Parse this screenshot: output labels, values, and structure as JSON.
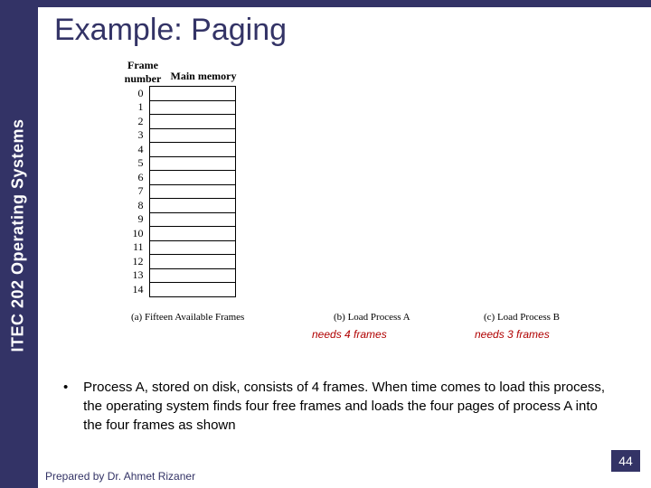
{
  "sidebar": {
    "label": "ITEC 202 Operating Systems"
  },
  "title": "Example: Paging",
  "figure": {
    "frame_header": "Frame\nnumber",
    "memory_header": "Main memory",
    "frame_numbers": [
      "0",
      "1",
      "2",
      "3",
      "4",
      "5",
      "6",
      "7",
      "8",
      "9",
      "10",
      "11",
      "12",
      "13",
      "14"
    ],
    "caption_a": "(a) Fifteen Available Frames",
    "caption_b": "(b) Load Process A",
    "caption_c": "(c) Load Process B",
    "needs_a": "needs 4 frames",
    "needs_b": "needs 3 frames"
  },
  "bullet": "Process A, stored on disk, consists of 4 frames. When time comes to load this process, the operating system finds four free frames and loads the four pages of process A into the four frames as shown",
  "footer": "Prepared by Dr. Ahmet Rizaner",
  "page": "44"
}
